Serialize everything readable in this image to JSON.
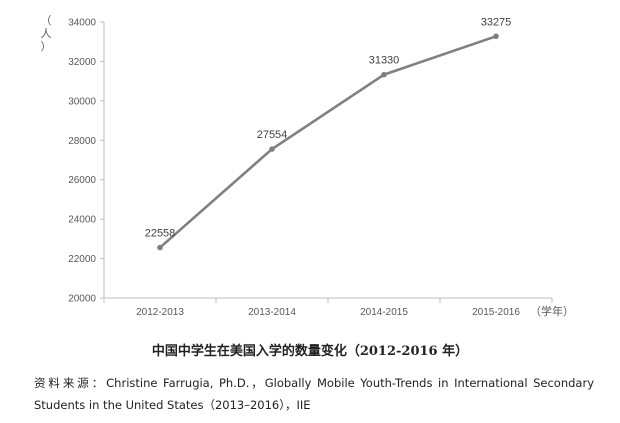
{
  "chart_data": {
    "type": "line",
    "categories": [
      "2012-2013",
      "2013-2014",
      "2014-2015",
      "2015-2016"
    ],
    "series": [
      {
        "values": [
          22558,
          27554,
          31330,
          33275
        ],
        "color": "#808080"
      }
    ],
    "data_labels": [
      "22558",
      "27554",
      "31330",
      "33275"
    ],
    "title": "中国中学生在美国入学的数量变化（2012-2016 年）",
    "xlabel": "（学年）",
    "ylabel": "（人）",
    "ylim": [
      20000,
      34000
    ],
    "yticks": [
      20000,
      22000,
      24000,
      26000,
      28000,
      30000,
      32000,
      34000
    ],
    "ytick_labels": [
      "20000",
      "22000",
      "24000",
      "26000",
      "28000",
      "30000",
      "32000",
      "34000"
    ],
    "grid": false,
    "legend": "none"
  },
  "source": {
    "prefix": "资料来源：",
    "text": "Christine Farrugia, Ph.D.，Globally Mobile Youth-Trends in International Secondary Students in the United States（2013–2016），IIE"
  }
}
